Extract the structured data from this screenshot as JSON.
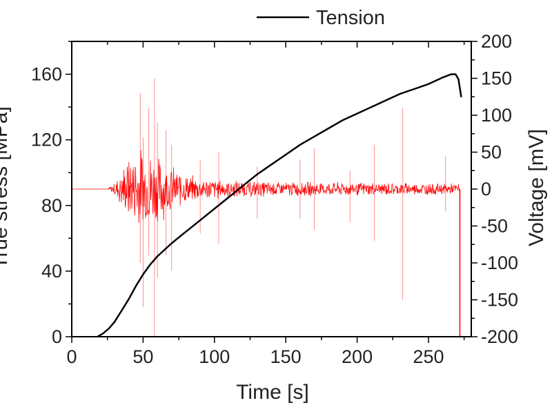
{
  "chart_data": {
    "type": "line",
    "xlabel": "Time [s]",
    "ylabel_left": "True stress [MPa]",
    "ylabel_right": "Voltage [mV]",
    "xlim": [
      0,
      280
    ],
    "ylim_left": [
      0,
      180
    ],
    "ylim_right": [
      -200,
      200
    ],
    "x_ticks": [
      "0",
      "50",
      "100",
      "150",
      "200",
      "250"
    ],
    "y_left_ticks": [
      "0",
      "40",
      "80",
      "120",
      "160"
    ],
    "y_right_ticks": [
      "200",
      "150",
      "100",
      "50",
      "0",
      "-50",
      "-100",
      "-150",
      "-200"
    ],
    "legend": {
      "label": "Tension",
      "position": "top-center"
    },
    "series": [
      {
        "name": "Tension",
        "axis": "left",
        "color": "#000000",
        "x": [
          18,
          22,
          26,
          30,
          35,
          40,
          45,
          50,
          55,
          60,
          70,
          80,
          90,
          100,
          110,
          120,
          130,
          140,
          150,
          160,
          170,
          180,
          190,
          200,
          210,
          220,
          230,
          240,
          250,
          260,
          266,
          269,
          271,
          273
        ],
        "y": [
          0,
          2,
          5,
          9,
          16,
          23,
          31,
          38,
          44,
          49,
          57,
          64,
          71,
          78,
          85,
          92,
          99,
          105,
          111,
          117,
          122,
          127,
          132,
          136,
          140,
          144,
          148,
          151,
          154,
          158,
          160,
          160,
          157,
          146
        ]
      },
      {
        "name": "",
        "axis": "right",
        "color": "#ff0000",
        "envelope_mV": {
          "t": [
            0,
            25,
            30,
            35,
            40,
            45,
            50,
            55,
            60,
            65,
            70,
            75,
            80,
            90,
            100,
            120,
            150,
            200,
            250,
            272
          ],
          "amp": [
            0,
            0,
            10,
            28,
            48,
            58,
            62,
            58,
            50,
            42,
            35,
            28,
            22,
            17,
            15,
            12,
            11,
            10,
            9,
            8
          ]
        },
        "spikes": [
          {
            "t": 48,
            "top": 130,
            "bottom": -100
          },
          {
            "t": 50,
            "top": 70,
            "bottom": -160
          },
          {
            "t": 54,
            "top": 110,
            "bottom": -90
          },
          {
            "t": 58,
            "top": 150,
            "bottom": -200
          },
          {
            "t": 60,
            "top": 90,
            "bottom": -120
          },
          {
            "t": 66,
            "top": 80,
            "bottom": -90
          },
          {
            "t": 70,
            "top": 60,
            "bottom": -110
          },
          {
            "t": 90,
            "top": 40,
            "bottom": -60
          },
          {
            "t": 103,
            "top": 50,
            "bottom": -75
          },
          {
            "t": 130,
            "top": 30,
            "bottom": -40
          },
          {
            "t": 160,
            "top": 40,
            "bottom": -40
          },
          {
            "t": 170,
            "top": 55,
            "bottom": -55
          },
          {
            "t": 195,
            "top": 25,
            "bottom": -45
          },
          {
            "t": 212,
            "top": 60,
            "bottom": -70
          },
          {
            "t": 232,
            "top": 110,
            "bottom": -150
          },
          {
            "t": 262,
            "top": 45,
            "bottom": -30
          }
        ],
        "cutoff": {
          "t": 272,
          "bottom": -200
        }
      }
    ]
  }
}
